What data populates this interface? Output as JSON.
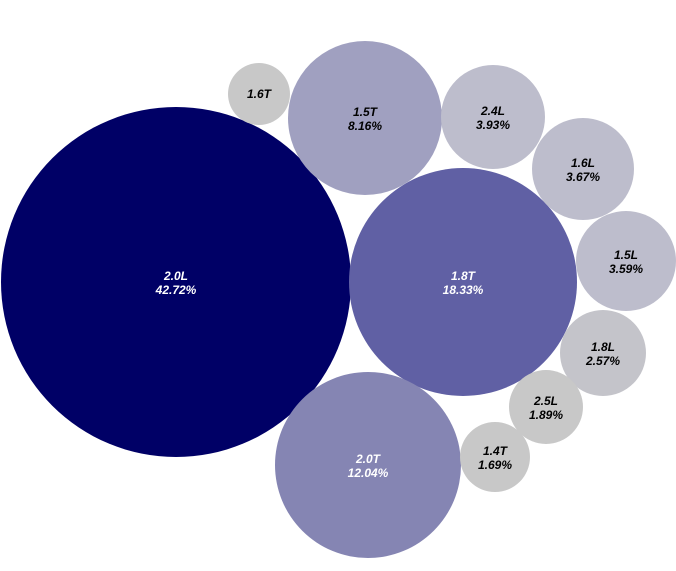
{
  "chart_data": {
    "type": "packed-bubble",
    "series": [
      {
        "name": "2.0L",
        "label": "42.72%",
        "value": 42.72,
        "color": "#000066",
        "text_color": "#ffffff"
      },
      {
        "name": "1.8T",
        "label": "18.33%",
        "value": 18.33,
        "color": "#6060a4",
        "text_color": "#ffffff"
      },
      {
        "name": "2.0T",
        "label": "12.04%",
        "value": 12.04,
        "color": "#8585b3",
        "text_color": "#ffffff"
      },
      {
        "name": "1.5T",
        "label": "8.16%",
        "value": 8.16,
        "color": "#a0a0c0",
        "text_color": "#000000"
      },
      {
        "name": "2.4L",
        "label": "3.93%",
        "value": 3.93,
        "color": "#bdbdcc",
        "text_color": "#000000"
      },
      {
        "name": "1.6L",
        "label": "3.67%",
        "value": 3.67,
        "color": "#bdbdcc",
        "text_color": "#000000"
      },
      {
        "name": "1.5L",
        "label": "3.59%",
        "value": 3.59,
        "color": "#bdbdcc",
        "text_color": "#000000"
      },
      {
        "name": "1.8L",
        "label": "2.57%",
        "value": 2.57,
        "color": "#c4c4ca",
        "text_color": "#000000"
      },
      {
        "name": "2.5L",
        "label": "1.89%",
        "value": 1.89,
        "color": "#c8c8c8",
        "text_color": "#000000"
      },
      {
        "name": "1.4T",
        "label": "1.69%",
        "value": 1.69,
        "color": "#c8c8c8",
        "text_color": "#000000"
      },
      {
        "name": "1.6T",
        "label": "",
        "value": null,
        "color": "#c8c8c8",
        "text_color": "#000000"
      }
    ]
  }
}
